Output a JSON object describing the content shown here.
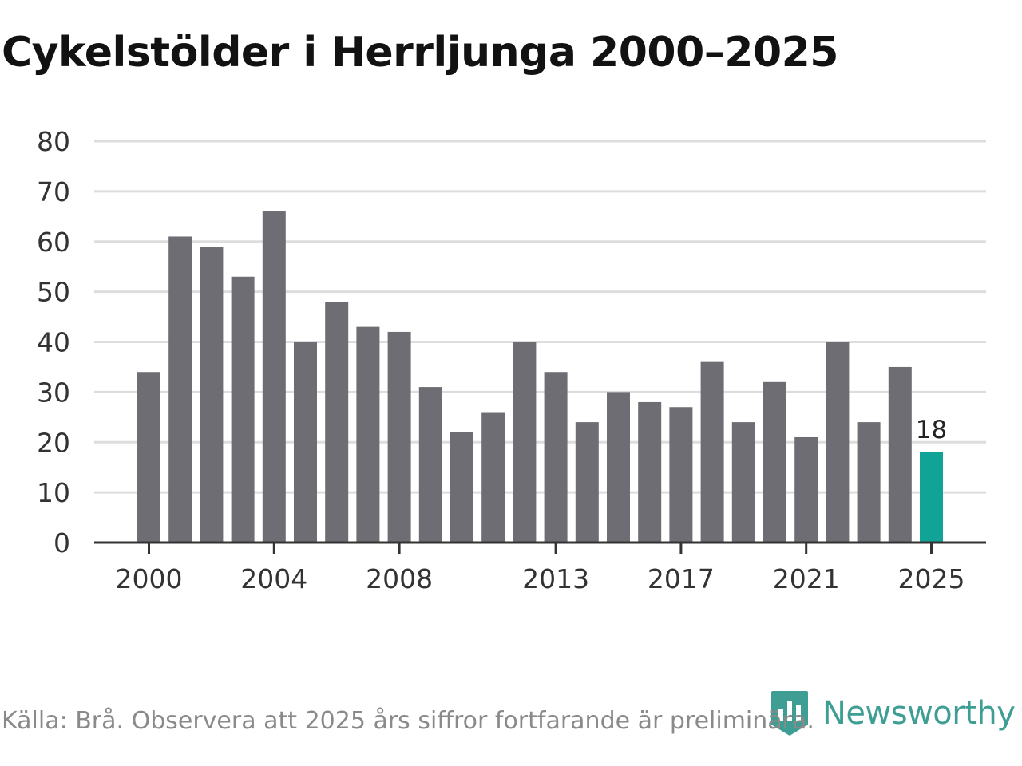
{
  "title": "Cykelstölder i Herrljunga 2000–2025",
  "source": "Källa: Brå. Observera att 2025 års siffror fortfarande är preliminära.",
  "logo": {
    "text": "Newsworthy",
    "icon": "bar-chart-logo-icon"
  },
  "colors": {
    "bar": "#6e6d73",
    "highlight": "#12a397",
    "grid": "#dddddd",
    "axis": "#333333",
    "text": "#333333"
  },
  "chart_data": {
    "type": "bar",
    "title": "Cykelstölder i Herrljunga 2000–2025",
    "xlabel": "",
    "ylabel": "",
    "ylim": [
      0,
      80
    ],
    "yticks": [
      0,
      10,
      20,
      30,
      40,
      50,
      60,
      70,
      80
    ],
    "xtick_labels": [
      "2000",
      "2004",
      "2008",
      "2013",
      "2017",
      "2021",
      "2025"
    ],
    "categories": [
      "2000",
      "2001",
      "2002",
      "2003",
      "2004",
      "2005",
      "2006",
      "2007",
      "2008",
      "2009",
      "2010",
      "2011",
      "2012",
      "2013",
      "2014",
      "2015",
      "2016",
      "2017",
      "2018",
      "2019",
      "2020",
      "2021",
      "2022",
      "2023",
      "2024",
      "2025"
    ],
    "values": [
      34,
      61,
      59,
      53,
      66,
      40,
      48,
      43,
      42,
      31,
      22,
      26,
      40,
      34,
      24,
      30,
      28,
      27,
      36,
      24,
      32,
      21,
      40,
      24,
      35,
      18
    ],
    "highlight": {
      "category": "2025",
      "label": "18"
    },
    "grid": true
  }
}
